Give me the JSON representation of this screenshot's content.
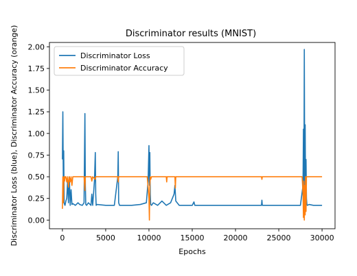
{
  "chart_data": {
    "type": "line",
    "title": "Discriminator results (MNIST)",
    "xlabel": "Epochs",
    "ylabel": "Discriminator Loss (blue), Discriminator Accuracy (orange)",
    "xlim": [
      -1500,
      31500
    ],
    "ylim": [
      -0.1,
      2.05
    ],
    "x_ticks": [
      0,
      5000,
      10000,
      15000,
      20000,
      25000,
      30000
    ],
    "y_ticks": [
      0.0,
      0.25,
      0.5,
      0.75,
      1.0,
      1.25,
      1.5,
      1.75,
      2.0
    ],
    "x_tick_labels": [
      "0",
      "5000",
      "10000",
      "15000",
      "20000",
      "25000",
      "30000"
    ],
    "y_tick_labels": [
      "0.00",
      "0.25",
      "0.50",
      "0.75",
      "1.00",
      "1.25",
      "1.50",
      "1.75",
      "2.00"
    ],
    "grid": false,
    "legend_position": "top-left",
    "series": [
      {
        "name": "Discriminator Loss",
        "color": "#1f77b4",
        "x": [
          0,
          50,
          100,
          150,
          200,
          250,
          300,
          400,
          500,
          600,
          700,
          800,
          900,
          1000,
          1100,
          1200,
          1500,
          1800,
          2000,
          2300,
          2500,
          2600,
          2650,
          2700,
          2800,
          3000,
          3300,
          3400,
          3500,
          3700,
          3800,
          3850,
          3900,
          4000,
          5000,
          6000,
          6400,
          6450,
          6500,
          6600,
          7000,
          8000,
          9000,
          9700,
          9900,
          10000,
          10050,
          10100,
          10150,
          10200,
          10300,
          10500,
          11000,
          11500,
          12000,
          12500,
          12900,
          13000,
          13100,
          13500,
          14000,
          15000,
          15200,
          15300,
          16000,
          18000,
          20000,
          22000,
          23000,
          23050,
          23100,
          24000,
          26000,
          27500,
          27800,
          27850,
          27900,
          27950,
          28000,
          28050,
          28100,
          28150,
          28200,
          28250,
          28300,
          28500,
          29000,
          29500,
          30000
        ],
        "y": [
          0.7,
          1.25,
          0.5,
          0.8,
          0.2,
          0.18,
          0.17,
          0.22,
          0.25,
          0.45,
          0.2,
          0.5,
          0.17,
          0.35,
          0.18,
          0.19,
          0.17,
          0.2,
          0.18,
          0.17,
          0.2,
          1.23,
          0.4,
          0.18,
          0.17,
          0.2,
          0.17,
          0.3,
          0.17,
          0.45,
          0.78,
          0.3,
          0.17,
          0.18,
          0.17,
          0.17,
          0.5,
          0.79,
          0.2,
          0.17,
          0.17,
          0.17,
          0.18,
          0.2,
          0.45,
          0.86,
          0.4,
          0.78,
          0.3,
          0.18,
          0.17,
          0.2,
          0.17,
          0.22,
          0.17,
          0.2,
          0.3,
          0.4,
          0.22,
          0.17,
          0.17,
          0.17,
          0.21,
          0.17,
          0.17,
          0.17,
          0.17,
          0.17,
          0.17,
          0.23,
          0.17,
          0.17,
          0.17,
          0.17,
          0.4,
          1.05,
          0.2,
          1.97,
          0.3,
          1.1,
          0.2,
          0.7,
          0.25,
          0.18,
          0.17,
          0.18,
          0.17,
          0.17,
          0.17
        ]
      },
      {
        "name": "Discriminator Accuracy",
        "color": "#ff7f0e",
        "x": [
          0,
          50,
          100,
          150,
          200,
          250,
          300,
          400,
          500,
          600,
          700,
          800,
          900,
          1000,
          1100,
          1200,
          1500,
          2000,
          2500,
          2600,
          2650,
          2700,
          3000,
          3300,
          3400,
          3500,
          3800,
          3850,
          3900,
          4000,
          5000,
          6400,
          6450,
          6500,
          7000,
          9000,
          9800,
          9900,
          10000,
          10050,
          10100,
          10150,
          10200,
          10300,
          10500,
          11000,
          12000,
          12050,
          12100,
          13000,
          13050,
          13100,
          14000,
          20000,
          23000,
          23050,
          23100,
          26000,
          27700,
          27800,
          27850,
          27900,
          27950,
          28000,
          28050,
          28100,
          28150,
          28200,
          28300,
          28500,
          29000,
          30000
        ],
        "y": [
          0.13,
          0.5,
          0.2,
          0.48,
          0.5,
          0.45,
          0.5,
          0.5,
          0.44,
          0.5,
          0.38,
          0.5,
          0.44,
          0.5,
          0.4,
          0.5,
          0.5,
          0.5,
          0.5,
          0.34,
          0.5,
          0.5,
          0.5,
          0.5,
          0.45,
          0.5,
          0.47,
          0.5,
          0.5,
          0.5,
          0.5,
          0.5,
          0.44,
          0.5,
          0.5,
          0.5,
          0.5,
          0.38,
          0.25,
          0.0,
          0.4,
          0.5,
          0.47,
          0.5,
          0.5,
          0.5,
          0.5,
          0.44,
          0.5,
          0.5,
          0.37,
          0.5,
          0.5,
          0.5,
          0.5,
          0.47,
          0.5,
          0.5,
          0.5,
          0.3,
          0.03,
          0.45,
          0.0,
          0.4,
          0.06,
          0.5,
          0.1,
          0.5,
          0.5,
          0.5,
          0.5,
          0.5
        ]
      }
    ]
  }
}
